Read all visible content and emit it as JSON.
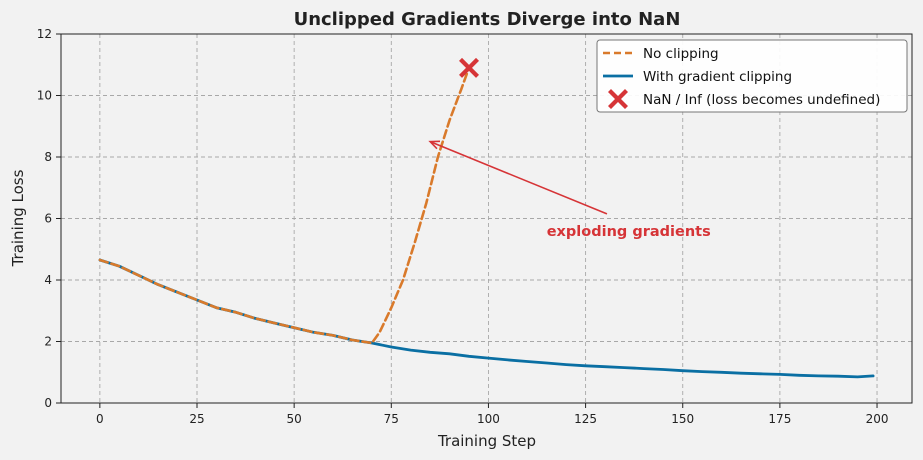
{
  "chart_data": {
    "type": "line",
    "title": "Unclipped Gradients Diverge into NaN",
    "xlabel": "Training Step",
    "ylabel": "Training Loss",
    "xlim": [
      -10,
      209
    ],
    "ylim": [
      0,
      12
    ],
    "xticks": [
      0,
      25,
      50,
      75,
      100,
      125,
      150,
      175,
      200
    ],
    "yticks": [
      0,
      2,
      4,
      6,
      8,
      10,
      12
    ],
    "grid": true,
    "legend_position": "top-right",
    "colors": {
      "no_clipping": "#d97a2b",
      "with_clipping": "#0a6fa3",
      "nan_marker": "#d63437",
      "annotation": "#d63437",
      "plot_background": "#f2f2f2",
      "grid": "#a8a8a8"
    },
    "series": [
      {
        "name": "No clipping",
        "style": "dashed",
        "x": [
          0,
          5,
          10,
          15,
          20,
          25,
          30,
          35,
          40,
          45,
          50,
          55,
          60,
          65,
          70,
          72,
          75,
          78,
          81,
          84,
          87,
          90,
          93,
          95
        ],
        "y": [
          4.65,
          4.45,
          4.15,
          3.85,
          3.6,
          3.35,
          3.1,
          2.95,
          2.75,
          2.6,
          2.45,
          2.3,
          2.2,
          2.05,
          1.95,
          2.3,
          3.1,
          4.0,
          5.2,
          6.5,
          8.0,
          9.2,
          10.2,
          10.9
        ]
      },
      {
        "name": "With gradient clipping",
        "style": "solid",
        "x": [
          0,
          5,
          10,
          15,
          20,
          25,
          30,
          35,
          40,
          45,
          50,
          55,
          60,
          65,
          70,
          75,
          80,
          85,
          90,
          95,
          100,
          105,
          110,
          115,
          120,
          125,
          130,
          135,
          140,
          145,
          150,
          155,
          160,
          165,
          170,
          175,
          180,
          185,
          190,
          195,
          199
        ],
        "y": [
          4.65,
          4.45,
          4.15,
          3.85,
          3.6,
          3.35,
          3.1,
          2.95,
          2.75,
          2.6,
          2.45,
          2.3,
          2.2,
          2.05,
          1.95,
          1.82,
          1.72,
          1.65,
          1.6,
          1.52,
          1.46,
          1.4,
          1.35,
          1.3,
          1.25,
          1.21,
          1.18,
          1.15,
          1.12,
          1.09,
          1.05,
          1.02,
          1.0,
          0.97,
          0.95,
          0.93,
          0.9,
          0.88,
          0.87,
          0.85,
          0.88
        ]
      }
    ],
    "markers": [
      {
        "name": "NaN / Inf (loss becomes undefined)",
        "x": 95,
        "y": 10.9,
        "shape": "X"
      }
    ],
    "annotations": [
      {
        "text": "exploding gradients",
        "text_x": 115,
        "text_y": 5.6,
        "arrow_to_x": 85,
        "arrow_to_y": 8.5
      }
    ]
  }
}
